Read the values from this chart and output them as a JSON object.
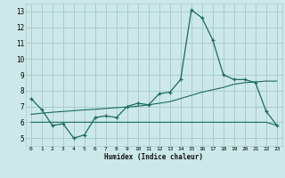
{
  "title": "",
  "xlabel": "Humidex (Indice chaleur)",
  "bg_color": "#cce8e8",
  "grid_color": "#aacccc",
  "line_color": "#1a6b5a",
  "xlim": [
    -0.5,
    23.5
  ],
  "ylim": [
    4.5,
    13.5
  ],
  "xticks": [
    0,
    1,
    2,
    3,
    4,
    5,
    6,
    7,
    8,
    9,
    10,
    11,
    12,
    13,
    14,
    15,
    16,
    17,
    18,
    19,
    20,
    21,
    22,
    23
  ],
  "yticks": [
    5,
    6,
    7,
    8,
    9,
    10,
    11,
    12,
    13
  ],
  "line1_x": [
    0,
    1,
    2,
    3,
    4,
    5,
    6,
    7,
    8,
    9,
    10,
    11,
    12,
    13,
    14,
    15,
    16,
    17,
    18,
    19,
    20,
    21,
    22,
    23
  ],
  "line1_y": [
    7.5,
    6.8,
    5.8,
    5.9,
    5.0,
    5.2,
    6.3,
    6.4,
    6.3,
    7.0,
    7.2,
    7.1,
    7.8,
    7.9,
    8.7,
    13.1,
    12.6,
    11.2,
    9.0,
    8.7,
    8.7,
    8.5,
    6.7,
    5.8
  ],
  "line2_x": [
    0,
    1,
    2,
    3,
    4,
    5,
    6,
    7,
    8,
    9,
    10,
    11,
    12,
    13,
    14,
    15,
    16,
    17,
    18,
    19,
    20,
    21,
    22,
    23
  ],
  "line2_y": [
    6.0,
    6.0,
    6.0,
    6.0,
    6.0,
    6.0,
    6.0,
    6.0,
    6.0,
    6.0,
    6.0,
    6.0,
    6.0,
    6.0,
    6.0,
    6.0,
    6.0,
    6.0,
    6.0,
    6.0,
    6.0,
    6.0,
    6.0,
    5.8
  ],
  "line3_x": [
    0,
    1,
    2,
    3,
    4,
    5,
    6,
    7,
    8,
    9,
    10,
    11,
    12,
    13,
    14,
    15,
    16,
    17,
    18,
    19,
    20,
    21,
    22,
    23
  ],
  "line3_y": [
    6.5,
    6.57,
    6.63,
    6.68,
    6.73,
    6.78,
    6.82,
    6.87,
    6.92,
    6.96,
    7.01,
    7.1,
    7.2,
    7.3,
    7.5,
    7.7,
    7.9,
    8.05,
    8.2,
    8.4,
    8.5,
    8.55,
    8.6,
    8.6
  ]
}
